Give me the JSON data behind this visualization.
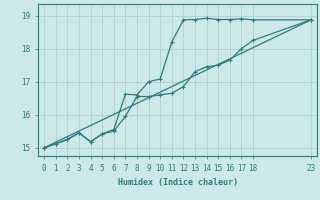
{
  "title": "",
  "xlabel": "Humidex (Indice chaleur)",
  "bg_color": "#cce8e8",
  "line_color": "#2d7d7d",
  "grid_color": "#b0d0d0",
  "xlim": [
    -0.5,
    23.5
  ],
  "ylim": [
    14.75,
    19.35
  ],
  "xticks": [
    0,
    1,
    2,
    3,
    4,
    5,
    6,
    7,
    8,
    9,
    10,
    11,
    12,
    13,
    14,
    15,
    16,
    17,
    18,
    23
  ],
  "yticks": [
    15,
    16,
    17,
    18,
    19
  ],
  "line1_x": [
    0,
    1,
    2,
    3,
    4,
    5,
    6,
    7,
    8,
    9,
    10,
    11,
    12,
    13,
    14,
    15,
    16,
    17,
    18,
    23
  ],
  "line1_y": [
    15.0,
    15.12,
    15.25,
    15.45,
    15.18,
    15.42,
    15.55,
    16.62,
    16.6,
    17.0,
    17.08,
    18.2,
    18.87,
    18.88,
    18.92,
    18.88,
    18.88,
    18.9,
    18.87,
    18.87
  ],
  "line2_x": [
    0,
    1,
    2,
    3,
    4,
    5,
    6,
    7,
    8,
    9,
    10,
    11,
    12,
    13,
    14,
    15,
    16,
    17,
    18,
    23
  ],
  "line2_y": [
    15.0,
    15.12,
    15.25,
    15.45,
    15.18,
    15.42,
    15.5,
    15.95,
    16.55,
    16.55,
    16.6,
    16.65,
    16.85,
    17.3,
    17.45,
    17.5,
    17.65,
    18.0,
    18.25,
    18.87
  ],
  "line3_x": [
    0,
    23
  ],
  "line3_y": [
    15.0,
    18.87
  ],
  "marker": "+",
  "markersize": 3,
  "linewidth": 0.9,
  "xlabel_fontsize": 6,
  "tick_fontsize": 5.5
}
